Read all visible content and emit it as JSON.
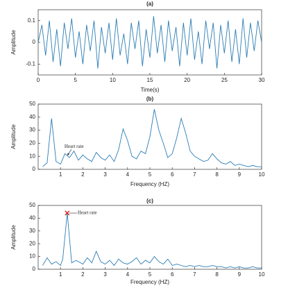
{
  "chart_data": [
    {
      "type": "line",
      "title": "(a)",
      "xlabel": "Time(s)",
      "ylabel": "Amplitude",
      "color": "#2a7db5",
      "xlim": [
        0,
        30
      ],
      "xticks": [
        0,
        5,
        10,
        15,
        20,
        25,
        30
      ],
      "ylim": [
        -0.15,
        0.15
      ],
      "yticks": [
        -0.1,
        0,
        0.1
      ],
      "x": [
        0,
        0.5,
        1,
        1.5,
        2,
        2.5,
        3,
        3.5,
        4,
        4.5,
        5,
        5.5,
        6,
        6.5,
        7,
        7.5,
        8,
        8.5,
        9,
        9.5,
        10,
        10.5,
        11,
        11.5,
        12,
        12.5,
        13,
        13.5,
        14,
        14.5,
        15,
        15.5,
        16,
        16.5,
        17,
        17.5,
        18,
        18.5,
        19,
        19.5,
        20,
        20.5,
        21,
        21.5,
        22,
        22.5,
        23,
        23.5,
        24,
        24.5,
        25,
        25.5,
        26,
        26.5,
        27,
        27.5,
        28,
        28.5,
        29,
        29.5,
        30
      ],
      "values": [
        0,
        0.08,
        -0.06,
        0.1,
        -0.09,
        0.06,
        -0.11,
        0.09,
        -0.03,
        0.11,
        -0.07,
        0.05,
        -0.1,
        0.08,
        -0.04,
        0.1,
        -0.12,
        0.07,
        -0.05,
        0.09,
        -0.08,
        0.11,
        -0.06,
        0.04,
        -0.1,
        0.09,
        -0.03,
        0.1,
        -0.11,
        0.06,
        -0.07,
        0.12,
        -0.05,
        0.08,
        -0.09,
        0.1,
        -0.04,
        0.07,
        -0.11,
        0.09,
        -0.06,
        0.11,
        -0.08,
        0.05,
        -0.1,
        0.1,
        -0.03,
        0.09,
        -0.12,
        0.08,
        -0.05,
        0.1,
        -0.09,
        0.06,
        -0.1,
        0.11,
        -0.07,
        0.09,
        -0.04,
        0.1,
        0
      ]
    },
    {
      "type": "line",
      "title": "(b)",
      "xlabel": "Frequency (HZ)",
      "ylabel": "Amplitude",
      "color": "#2a7db5",
      "xlim": [
        0,
        10
      ],
      "xticks": [
        1,
        2,
        3,
        4,
        5,
        6,
        7,
        8,
        9,
        10
      ],
      "ylim": [
        0,
        50
      ],
      "yticks": [
        0,
        10,
        20,
        30,
        40,
        50
      ],
      "x": [
        0.2,
        0.4,
        0.6,
        0.8,
        1,
        1.2,
        1.4,
        1.6,
        1.8,
        2,
        2.2,
        2.4,
        2.6,
        2.8,
        3,
        3.2,
        3.4,
        3.6,
        3.8,
        4,
        4.2,
        4.4,
        4.6,
        4.8,
        5,
        5.2,
        5.4,
        5.6,
        5.8,
        6,
        6.2,
        6.4,
        6.6,
        6.8,
        7,
        7.2,
        7.4,
        7.6,
        7.8,
        8,
        8.2,
        8.4,
        8.6,
        8.8,
        9,
        9.2,
        9.4,
        9.6,
        9.8,
        10
      ],
      "values": [
        2,
        5,
        39,
        6,
        4,
        12,
        9,
        14,
        7,
        11,
        8,
        6,
        13,
        9,
        7,
        11,
        6,
        15,
        31,
        22,
        10,
        8,
        14,
        12,
        25,
        46,
        30,
        20,
        9,
        12,
        24,
        39,
        28,
        14,
        10,
        8,
        6,
        7,
        12,
        8,
        5,
        4,
        6,
        3,
        4,
        3,
        2,
        3,
        2,
        2
      ],
      "annotation": {
        "text": "Heart rate",
        "x": 1.3,
        "y": 10
      }
    },
    {
      "type": "line",
      "title": "(c)",
      "xlabel": "Frequency (HZ)",
      "ylabel": "Amplitude",
      "color": "#2a7db5",
      "xlim": [
        0,
        10
      ],
      "xticks": [
        1,
        2,
        3,
        4,
        5,
        6,
        7,
        8,
        9,
        10
      ],
      "ylim": [
        0,
        50
      ],
      "yticks": [
        0,
        10,
        20,
        30,
        40,
        50
      ],
      "x": [
        0.2,
        0.4,
        0.6,
        0.8,
        1,
        1.1,
        1.3,
        1.5,
        1.7,
        2,
        2.2,
        2.4,
        2.6,
        2.8,
        3,
        3.2,
        3.4,
        3.6,
        3.8,
        4,
        4.2,
        4.4,
        4.6,
        4.8,
        5,
        5.2,
        5.4,
        5.6,
        5.8,
        6,
        6.2,
        6.4,
        6.6,
        6.8,
        7,
        7.2,
        7.4,
        7.6,
        7.8,
        8,
        8.2,
        8.4,
        8.6,
        8.8,
        9,
        9.2,
        9.4,
        9.6,
        9.8,
        10
      ],
      "values": [
        3,
        9,
        4,
        6,
        3,
        8,
        44,
        5,
        7,
        4,
        9,
        5,
        14,
        6,
        4,
        7,
        3,
        8,
        5,
        4,
        6,
        9,
        4,
        7,
        5,
        10,
        6,
        4,
        8,
        3,
        4,
        3,
        2,
        3,
        2,
        3,
        2,
        2,
        3,
        2,
        2,
        1,
        2,
        1,
        2,
        1,
        1,
        2,
        1,
        1
      ],
      "annotation": {
        "text": "Heart rate",
        "x": 1.3,
        "y": 44
      }
    }
  ]
}
